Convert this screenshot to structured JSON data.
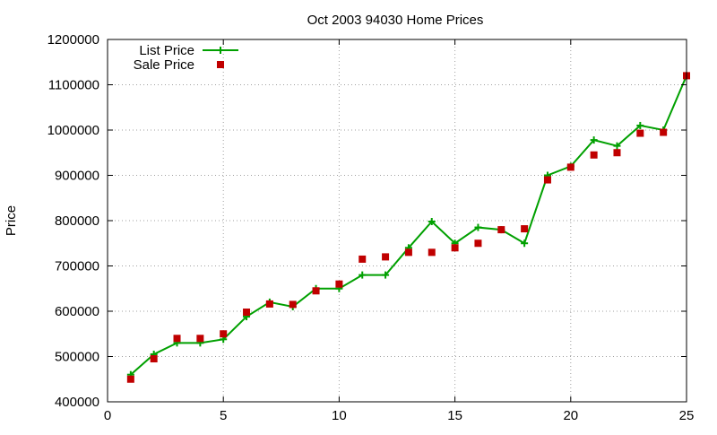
{
  "chart_data": {
    "type": "line",
    "title": "Oct 2003 94030 Home Prices",
    "xlabel": "",
    "ylabel": "Price",
    "xlim": [
      0,
      25
    ],
    "ylim": [
      400000,
      1200000
    ],
    "x_ticks": [
      "0",
      "5",
      "10",
      "15",
      "20",
      "25"
    ],
    "y_ticks": [
      "400000",
      "500000",
      "600000",
      "700000",
      "800000",
      "900000",
      "1000000",
      "1100000",
      "1200000"
    ],
    "grid": true,
    "legend_position": "top-left",
    "x": [
      1,
      2,
      3,
      4,
      5,
      6,
      7,
      8,
      9,
      10,
      11,
      12,
      13,
      14,
      15,
      16,
      17,
      18,
      19,
      20,
      21,
      22,
      23,
      24,
      25
    ],
    "series": [
      {
        "name": "List Price",
        "style": "line+cross",
        "color": "#00a000",
        "values": [
          460000,
          505000,
          530000,
          530000,
          538000,
          588000,
          620000,
          610000,
          650000,
          650000,
          680000,
          680000,
          740000,
          798000,
          750000,
          785000,
          780000,
          750000,
          900000,
          920000,
          978000,
          965000,
          1010000,
          1000000,
          1120000
        ]
      },
      {
        "name": "Sale Price",
        "style": "square",
        "color": "#c00000",
        "values": [
          450000,
          495000,
          540000,
          540000,
          550000,
          598000,
          616000,
          615000,
          645000,
          660000,
          715000,
          720000,
          730000,
          730000,
          740000,
          750000,
          780000,
          782000,
          890000,
          918000,
          945000,
          950000,
          993000,
          995000,
          1120000
        ]
      }
    ]
  }
}
